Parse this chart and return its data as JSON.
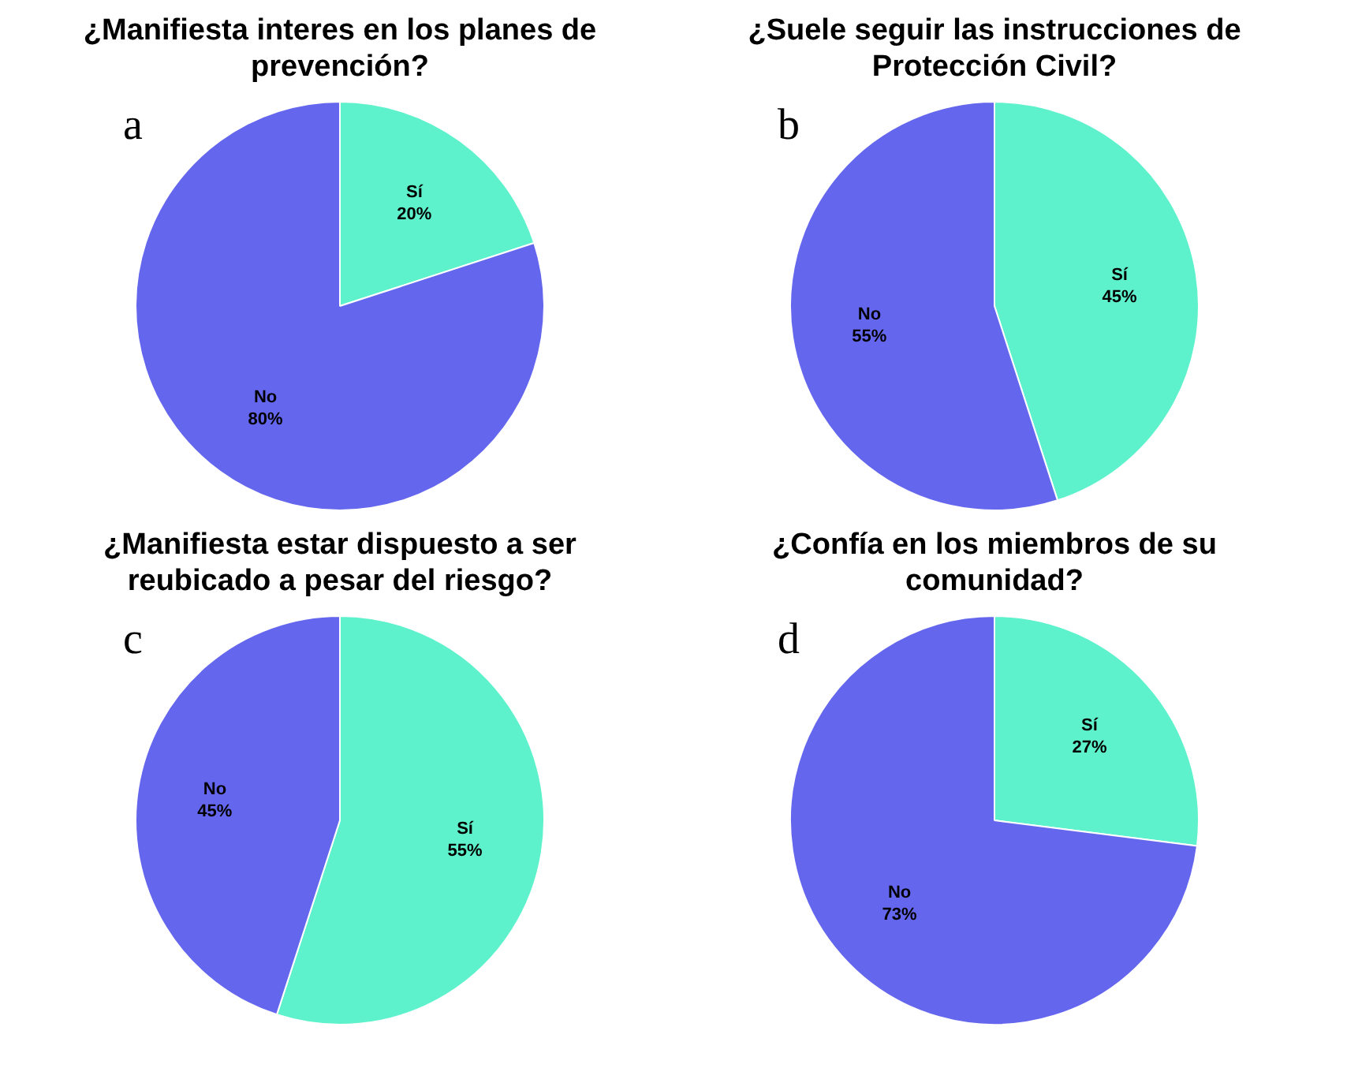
{
  "chart_data": [
    {
      "type": "pie",
      "title": "¿Manifiesta interes en los planes de prevención?",
      "categories": [
        "Sí",
        "No"
      ],
      "values": [
        20,
        80
      ],
      "colors": [
        "#5ef2cc",
        "#6466ee"
      ],
      "value_labels": [
        "20%",
        "80%"
      ],
      "annotations": [
        "a"
      ]
    },
    {
      "type": "pie",
      "title": "¿Suele seguir las instrucciones de Protección Civil?",
      "categories": [
        "Sí",
        "No"
      ],
      "values": [
        45,
        55
      ],
      "colors": [
        "#5ef2cc",
        "#6466ee"
      ],
      "value_labels": [
        "45%",
        "55%"
      ],
      "annotations": [
        "b"
      ]
    },
    {
      "type": "pie",
      "title": "¿Manifiesta estar dispuesto a ser reubicado a pesar  del riesgo?",
      "categories": [
        "Sí",
        "No"
      ],
      "values": [
        55,
        45
      ],
      "colors": [
        "#5ef2cc",
        "#6466ee"
      ],
      "value_labels": [
        "55%",
        "45%"
      ],
      "annotations": [
        "c"
      ]
    },
    {
      "type": "pie",
      "title": "¿Confía en los miembros de su comunidad?",
      "categories": [
        "Sí",
        "No"
      ],
      "values": [
        27,
        73
      ],
      "colors": [
        "#5ef2cc",
        "#6466ee"
      ],
      "value_labels": [
        "27%",
        "73%"
      ],
      "annotations": [
        "d"
      ]
    }
  ]
}
